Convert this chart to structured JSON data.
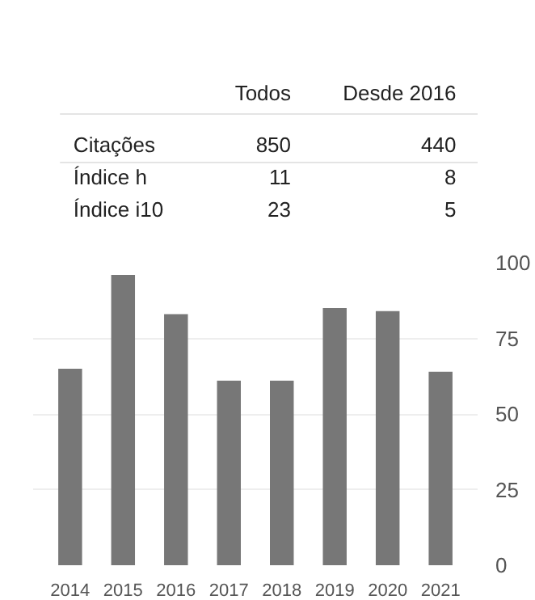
{
  "chart_data": [
    {
      "type": "other",
      "annotations": [
        "Todos",
        "Desde 2016",
        "Citações",
        "850",
        "440",
        "Índice h",
        "11",
        "8",
        "Índice i10",
        "23",
        "5"
      ]
    },
    {
      "type": "bar",
      "categories": [
        "2014",
        "2015",
        "2016",
        "2017",
        "2018",
        "2019",
        "2020",
        "2021"
      ],
      "values": [
        65,
        96,
        83,
        61,
        61,
        85,
        84,
        64
      ],
      "color": "#777777",
      "ylim": [
        0,
        100
      ],
      "yticks": [
        0,
        25,
        50,
        75,
        100
      ],
      "grid": "y"
    }
  ]
}
